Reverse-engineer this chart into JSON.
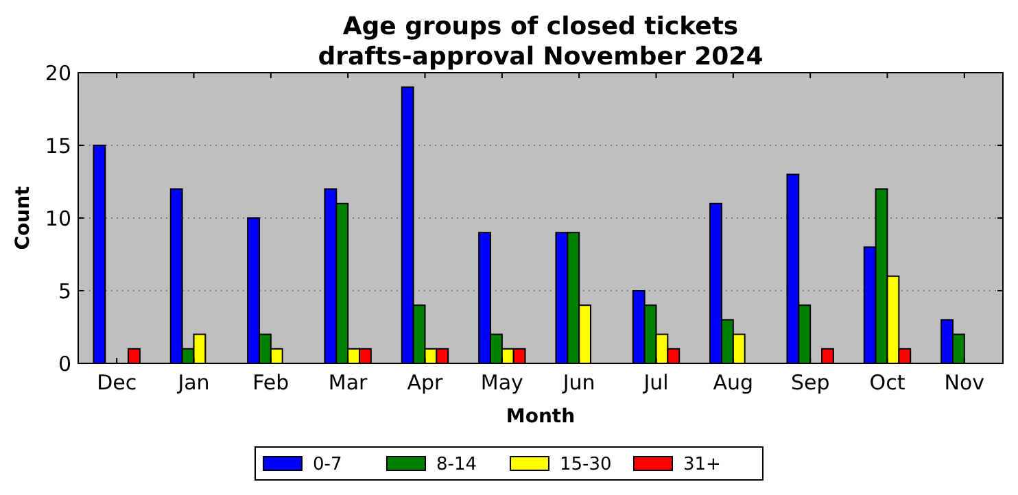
{
  "chart_data": {
    "type": "bar",
    "title": "Age groups of closed tickets\ndrafts-approval November 2024",
    "xlabel": "Month",
    "ylabel": "Count",
    "categories": [
      "Dec",
      "Jan",
      "Feb",
      "Mar",
      "Apr",
      "May",
      "Jun",
      "Jul",
      "Aug",
      "Sep",
      "Oct",
      "Nov"
    ],
    "series": [
      {
        "name": "0-7",
        "color": "#0000ff",
        "values": [
          15,
          12,
          10,
          12,
          19,
          9,
          9,
          5,
          11,
          13,
          8,
          3
        ]
      },
      {
        "name": "8-14",
        "color": "#008000",
        "values": [
          0,
          1,
          2,
          11,
          4,
          2,
          9,
          4,
          3,
          4,
          12,
          2
        ]
      },
      {
        "name": "15-30",
        "color": "#ffff00",
        "values": [
          0,
          2,
          1,
          1,
          1,
          1,
          4,
          2,
          2,
          0,
          6,
          0
        ]
      },
      {
        "name": "31+",
        "color": "#ff0000",
        "values": [
          1,
          0,
          0,
          1,
          1,
          1,
          0,
          1,
          0,
          1,
          1,
          0
        ]
      }
    ],
    "ylim": [
      0,
      20
    ],
    "yticks": [
      0,
      5,
      10,
      15,
      20
    ],
    "grid": "y",
    "legend": "bottom"
  }
}
